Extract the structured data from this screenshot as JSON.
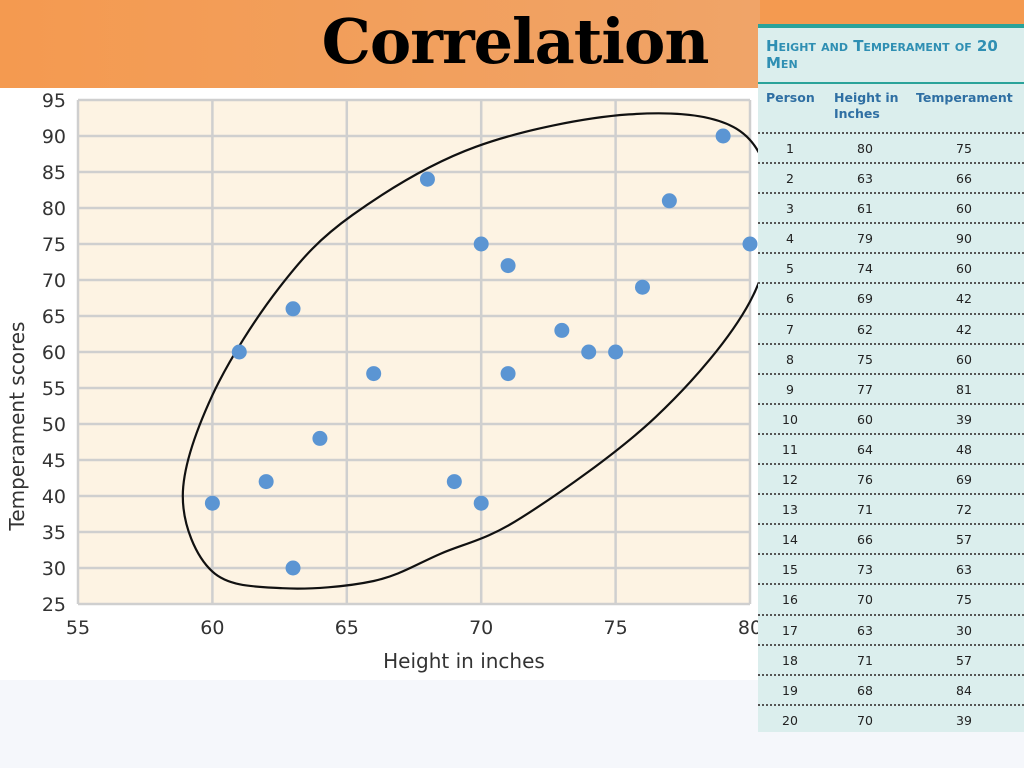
{
  "slide": {
    "title": "Correlation"
  },
  "table": {
    "title": "Height and Temperament of 20 Men",
    "headers": {
      "person": "Person",
      "height": "Height in Inches",
      "temperament": "Temperament"
    },
    "rows": [
      {
        "person": "1",
        "height": "80",
        "temperament": "75"
      },
      {
        "person": "2",
        "height": "63",
        "temperament": "66"
      },
      {
        "person": "3",
        "height": "61",
        "temperament": "60"
      },
      {
        "person": "4",
        "height": "79",
        "temperament": "90"
      },
      {
        "person": "5",
        "height": "74",
        "temperament": "60"
      },
      {
        "person": "6",
        "height": "69",
        "temperament": "42"
      },
      {
        "person": "7",
        "height": "62",
        "temperament": "42"
      },
      {
        "person": "8",
        "height": "75",
        "temperament": "60"
      },
      {
        "person": "9",
        "height": "77",
        "temperament": "81"
      },
      {
        "person": "10",
        "height": "60",
        "temperament": "39"
      },
      {
        "person": "11",
        "height": "64",
        "temperament": "48"
      },
      {
        "person": "12",
        "height": "76",
        "temperament": "69"
      },
      {
        "person": "13",
        "height": "71",
        "temperament": "72"
      },
      {
        "person": "14",
        "height": "66",
        "temperament": "57"
      },
      {
        "person": "15",
        "height": "73",
        "temperament": "63"
      },
      {
        "person": "16",
        "height": "70",
        "temperament": "75"
      },
      {
        "person": "17",
        "height": "63",
        "temperament": "30"
      },
      {
        "person": "18",
        "height": "71",
        "temperament": "57"
      },
      {
        "person": "19",
        "height": "68",
        "temperament": "84"
      },
      {
        "person": "20",
        "height": "70",
        "temperament": "39"
      }
    ]
  },
  "chart_data": {
    "type": "scatter",
    "xlabel": "Height in inches",
    "ylabel": "Temperament  scores",
    "xlim": [
      55,
      80
    ],
    "ylim": [
      25,
      95
    ],
    "xticks": [
      55,
      60,
      65,
      70,
      75,
      80
    ],
    "yticks": [
      25,
      30,
      35,
      40,
      45,
      50,
      55,
      60,
      65,
      70,
      75,
      80,
      85,
      90,
      95
    ],
    "grid": true,
    "points": [
      {
        "x": 80,
        "y": 75
      },
      {
        "x": 63,
        "y": 66
      },
      {
        "x": 61,
        "y": 60
      },
      {
        "x": 79,
        "y": 90
      },
      {
        "x": 74,
        "y": 60
      },
      {
        "x": 69,
        "y": 42
      },
      {
        "x": 62,
        "y": 42
      },
      {
        "x": 75,
        "y": 60
      },
      {
        "x": 77,
        "y": 81
      },
      {
        "x": 60,
        "y": 39
      },
      {
        "x": 64,
        "y": 48
      },
      {
        "x": 76,
        "y": 69
      },
      {
        "x": 71,
        "y": 72
      },
      {
        "x": 66,
        "y": 57
      },
      {
        "x": 73,
        "y": 63
      },
      {
        "x": 70,
        "y": 75
      },
      {
        "x": 63,
        "y": 30
      },
      {
        "x": 71,
        "y": 57
      },
      {
        "x": 68,
        "y": 84
      },
      {
        "x": 70,
        "y": 39
      }
    ],
    "annotation": "hand-drawn ellipse enclosing all points",
    "colors": {
      "point": "#5b95d3",
      "plot_background": "#fdf3e3",
      "grid": "#cfcfcf",
      "ellipse": "#111111"
    }
  }
}
